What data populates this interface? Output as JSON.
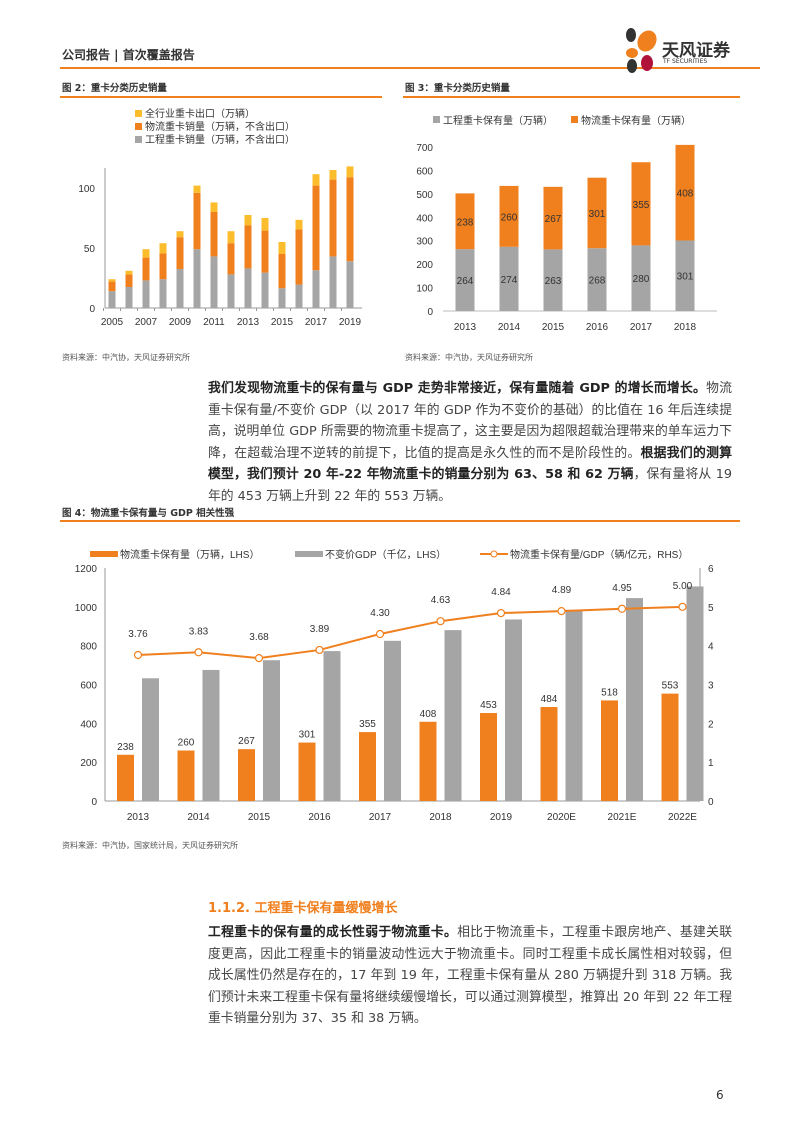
{
  "header": {
    "title": "公司报告 | 首次覆盖报告",
    "logo_cn": "天风证券",
    "logo_en": "TF SECURITIES"
  },
  "colors": {
    "accent": "#f07f1e",
    "grey": "#a5a5a5",
    "yellow": "#fbbd2c"
  },
  "fig2": {
    "title": "图 2：重卡分类历史销量",
    "source": "资料来源：中汽协，天风证券研究所",
    "chart_data": {
      "type": "bar",
      "stacked": true,
      "categories": [
        "2005",
        "2006",
        "2007",
        "2008",
        "2009",
        "2010",
        "2011",
        "2012",
        "2013",
        "2014",
        "2015",
        "2016",
        "2017",
        "2018",
        "2019"
      ],
      "tick_labels": [
        "2005",
        "2007",
        "2009",
        "2011",
        "2013",
        "2015",
        "2017",
        "2019"
      ],
      "series": [
        {
          "name": "工程重卡销量（万辆，不含出口）",
          "color": "#a5a5a5",
          "values": [
            14,
            17.5,
            23,
            24,
            32.5,
            49,
            43,
            28,
            33,
            29.5,
            16.5,
            19.5,
            31.5,
            43,
            39
          ]
        },
        {
          "name": "物流重卡销量（万辆，不含出口）",
          "color": "#f07f1e",
          "values": [
            8,
            10.5,
            19,
            21.5,
            26.5,
            47,
            37,
            26,
            36,
            35,
            28.5,
            46,
            70.5,
            64,
            70
          ]
        },
        {
          "name": "全行业重卡出口（万辆）",
          "color": "#fbbd2c",
          "values": [
            2,
            3,
            7,
            8.5,
            5,
            6,
            8,
            10,
            8.5,
            10.5,
            10,
            8,
            9.5,
            8,
            9
          ]
        }
      ],
      "ylim": [
        0,
        120
      ],
      "yticks": [
        "0",
        "50",
        "100"
      ],
      "legend": "top"
    }
  },
  "fig3": {
    "title": "图 3：重卡分类历史销量",
    "source": "资料来源：中汽协，天风证券研究所",
    "chart_data": {
      "type": "bar",
      "stacked": true,
      "categories": [
        "2013",
        "2014",
        "2015",
        "2016",
        "2017",
        "2018"
      ],
      "series": [
        {
          "name": "工程重卡保有量（万辆）",
          "color": "#a5a5a5",
          "values": [
            264,
            274,
            263,
            268,
            280,
            301
          ]
        },
        {
          "name": "物流重卡保有量（万辆）",
          "color": "#f07f1e",
          "values": [
            238,
            260,
            267,
            301,
            355,
            408
          ]
        }
      ],
      "ylim": [
        0,
        700
      ],
      "yticks": [
        "0",
        "100",
        "200",
        "300",
        "400",
        "500",
        "600",
        "700"
      ],
      "legend": "top",
      "data_labels": true
    }
  },
  "paragraph1": {
    "bold1": "我们发现物流重卡的保有量与 GDP 走势非常接近，保有量随着 GDP 的增长而增长。",
    "text1": "物流重卡保有量/不变价 GDP（以 2017 年的 GDP 作为不变价的基础）的比值在 16 年后连续提高，说明单位 GDP 所需要的物流重卡提高了，这主要是因为超限超载治理带来的单车运力下降，在超载治理不逆转的前提下，比值的提高是永久性的而不是阶段性的。",
    "bold2": "根据我们的测算模型，我们预计 20 年-22 年物流重卡的销量分别为 63、58 和 62 万辆",
    "text2": "，保有量将从 19 年的 453 万辆上升到 22 年的 553 万辆。"
  },
  "fig4": {
    "title": "图 4：物流重卡保有量与 GDP 相关性强",
    "source": "资料来源：中汽协，国家统计局，天风证券研究所",
    "chart_data": {
      "type": "bar+line",
      "categories": [
        "2013",
        "2014",
        "2015",
        "2016",
        "2017",
        "2018",
        "2019",
        "2020E",
        "2021E",
        "2022E"
      ],
      "series": [
        {
          "name": "物流重卡保有量（万辆，LHS）",
          "type": "bar",
          "axis": "left",
          "color": "#f07f1e",
          "values": [
            238,
            260,
            267,
            301,
            355,
            408,
            453,
            484,
            518,
            553
          ],
          "labels": [
            "238",
            "260",
            "267",
            "301",
            "355",
            "408",
            "453",
            "484",
            "518",
            "553"
          ]
        },
        {
          "name": "不变价GDP（千亿，LHS）",
          "type": "bar",
          "axis": "left",
          "color": "#a5a5a5",
          "values": [
            632,
            675,
            725,
            772,
            825,
            880,
            935,
            985,
            1045,
            1105
          ]
        },
        {
          "name": "物流重卡保有量/GDP（辆/亿元，RHS）",
          "type": "line",
          "axis": "right",
          "color": "#f07f1e",
          "values": [
            3.76,
            3.83,
            3.68,
            3.89,
            4.3,
            4.63,
            4.84,
            4.89,
            4.95,
            5.0
          ],
          "labels": [
            "3.76",
            "3.83",
            "3.68",
            "3.89",
            "4.30",
            "4.63",
            "4.84",
            "4.89",
            "4.95",
            "5.00"
          ]
        }
      ],
      "ylim_left": [
        0,
        1200
      ],
      "yticks_left": [
        "0",
        "200",
        "400",
        "600",
        "800",
        "1000",
        "1200"
      ],
      "ylim_right": [
        0,
        6
      ],
      "yticks_right": [
        "0",
        "1",
        "2",
        "3",
        "4",
        "5",
        "6"
      ],
      "legend": "top"
    }
  },
  "section": {
    "heading": "1.1.2. 工程重卡保有量缓慢增长",
    "bold": "工程重卡的保有量的成长性弱于物流重卡。",
    "text": "相比于物流重卡，工程重卡跟房地产、基建关联度更高，因此工程重卡的销量波动性远大于物流重卡。同时工程重卡成长属性相对较弱，但成长属性仍然是存在的，17 年到 19 年，工程重卡保有量从 280 万辆提升到 318 万辆。我们预计未来工程重卡保有量将继续缓慢增长，可以通过测算模型，推算出 20 年到 22 年工程重卡销量分别为 37、35 和 38 万辆。"
  },
  "page_number": "6"
}
